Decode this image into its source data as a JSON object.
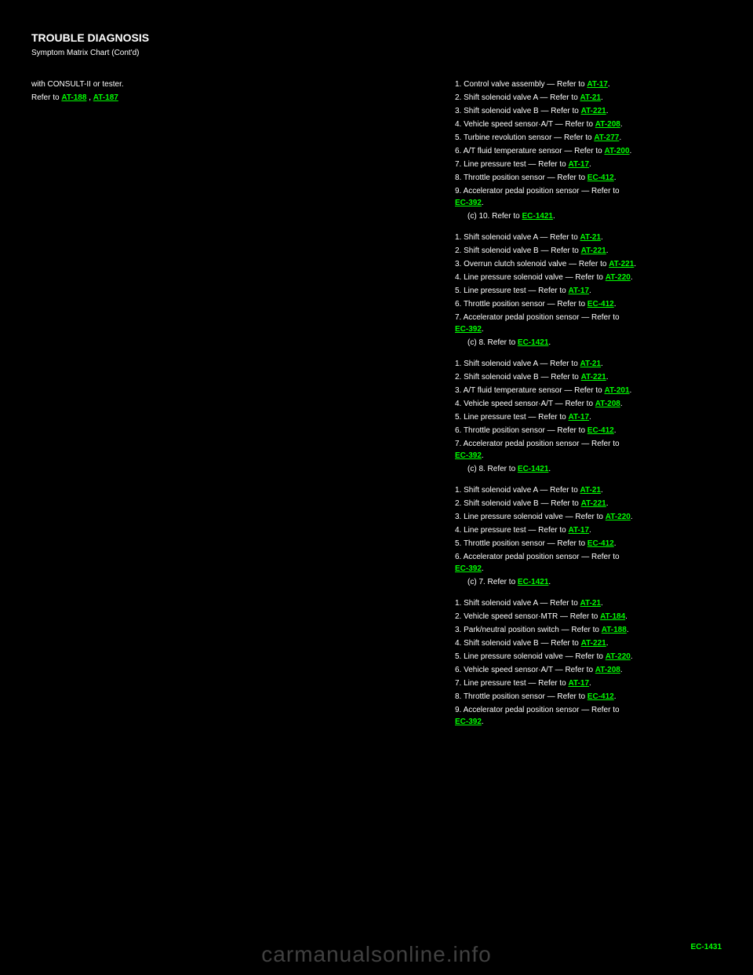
{
  "header": {
    "title": "TROUBLE DIAGNOSIS",
    "subtitle": "Symptom Matrix Chart (Cont'd)"
  },
  "left": {
    "intro": "with CONSULT-II or tester.",
    "line2_prefix": "Refer to ",
    "link1": "AT-188",
    "link_sep": ", ",
    "link2": "AT-187"
  },
  "right": {
    "groups": [
      {
        "title": "",
        "items": [
          {
            "text": "1. Control valve assembly — Refer to ",
            "link": "AT-17",
            "suffix": "."
          },
          {
            "text": "2. Shift solenoid valve A — Refer to ",
            "link": "AT-21",
            "suffix": "."
          },
          {
            "text": "3. Shift solenoid valve B — Refer to ",
            "link": "AT-221",
            "suffix": "."
          },
          {
            "text": "4. Vehicle speed sensor·A/T — Refer to ",
            "link": "AT-208",
            "suffix": "."
          },
          {
            "text": "5. Turbine revolution sensor — Refer to ",
            "link": "AT-277",
            "suffix": "."
          },
          {
            "text": "6. A/T fluid temperature sensor — Refer to ",
            "link": "AT-200",
            "suffix": "."
          },
          {
            "text": "7. Line pressure test — Refer to ",
            "link": "AT-17",
            "suffix": "."
          },
          {
            "text": "8. Throttle position sensor — Refer to ",
            "link": "EC-412",
            "suffix": "."
          },
          {
            "text": "9. Accelerator pedal position sensor — Refer to ",
            "link": "EC-392",
            "suffix": ".",
            "wrap": true
          },
          {
            "text": "(c) 10. Refer to ",
            "link": "EC-1421",
            "suffix": ".",
            "indent": 1
          }
        ]
      },
      {
        "title": "",
        "items": [
          {
            "text": "1. Shift solenoid valve A — Refer to ",
            "link": "AT-21",
            "suffix": "."
          },
          {
            "text": "2. Shift solenoid valve B — Refer to ",
            "link": "AT-221",
            "suffix": "."
          },
          {
            "text": "3. Overrun clutch solenoid valve — Refer to ",
            "link": "AT-221",
            "suffix": "."
          },
          {
            "text": "4. Line pressure solenoid valve — Refer to ",
            "link": "AT-220",
            "suffix": "."
          },
          {
            "text": "5. Line pressure test — Refer to ",
            "link": "AT-17",
            "suffix": "."
          },
          {
            "text": "6. Throttle position sensor — Refer to ",
            "link": "EC-412",
            "suffix": "."
          },
          {
            "text": "7. Accelerator pedal position sensor — Refer to ",
            "link": "EC-392",
            "suffix": ".",
            "wrap": true
          },
          {
            "text": "(c) 8. Refer to ",
            "link": "EC-1421",
            "suffix": ".",
            "indent": 1
          }
        ]
      },
      {
        "title": "",
        "items": [
          {
            "text": "1. Shift solenoid valve A — Refer to ",
            "link": "AT-21",
            "suffix": "."
          },
          {
            "text": "2. Shift solenoid valve B — Refer to ",
            "link": "AT-221",
            "suffix": "."
          },
          {
            "text": "3. A/T fluid temperature sensor — Refer to ",
            "link": "AT-201",
            "suffix": "."
          },
          {
            "text": "4. Vehicle speed sensor·A/T — Refer to ",
            "link": "AT-208",
            "suffix": "."
          },
          {
            "text": "5. Line pressure test — Refer to ",
            "link": "AT-17",
            "suffix": "."
          },
          {
            "text": "6. Throttle position sensor — Refer to ",
            "link": "EC-412",
            "suffix": "."
          },
          {
            "text": "7. Accelerator pedal position sensor — Refer to ",
            "link": "EC-392",
            "suffix": ".",
            "wrap": true
          },
          {
            "text": "(c) 8. Refer to ",
            "link": "EC-1421",
            "suffix": ".",
            "indent": 1
          }
        ]
      },
      {
        "title": "",
        "items": [
          {
            "text": "1. Shift solenoid valve A — Refer to ",
            "link": "AT-21",
            "suffix": "."
          },
          {
            "text": "2. Shift solenoid valve B — Refer to ",
            "link": "AT-221",
            "suffix": "."
          },
          {
            "text": "3. Line pressure solenoid valve — Refer to ",
            "link": "AT-220",
            "suffix": "."
          },
          {
            "text": "4. Line pressure test — Refer to ",
            "link": "AT-17",
            "suffix": "."
          },
          {
            "text": "5. Throttle position sensor — Refer to ",
            "link": "EC-412",
            "suffix": "."
          },
          {
            "text": "6. Accelerator pedal position sensor — Refer to ",
            "link": "EC-392",
            "suffix": ".",
            "wrap": true
          },
          {
            "text": "(c) 7. Refer to ",
            "link": "EC-1421",
            "suffix": ".",
            "indent": 1
          }
        ]
      },
      {
        "title": "",
        "items": [
          {
            "text": "1. Shift solenoid valve A — Refer to ",
            "link": "AT-21",
            "suffix": "."
          },
          {
            "text": "2. Vehicle speed sensor·MTR — Refer to ",
            "link": "AT-184",
            "suffix": "."
          },
          {
            "text": "3. Park/neutral position switch — Refer to ",
            "link": "AT-188",
            "suffix": "."
          },
          {
            "text": "4. Shift solenoid valve B — Refer to ",
            "link": "AT-221",
            "suffix": "."
          },
          {
            "text": "5. Line pressure solenoid valve — Refer to ",
            "link": "AT-220",
            "suffix": "."
          },
          {
            "text": "6. Vehicle speed sensor·A/T — Refer to ",
            "link": "AT-208",
            "suffix": "."
          },
          {
            "text": "7. Line pressure test — Refer to ",
            "link": "AT-17",
            "suffix": "."
          },
          {
            "text": "8. Throttle position sensor — Refer to ",
            "link": "EC-412",
            "suffix": "."
          },
          {
            "text": "9. Accelerator pedal position sensor — Refer to ",
            "link": "EC-392",
            "suffix": ".",
            "wrap": true
          }
        ]
      }
    ]
  },
  "footer": {
    "page": "EC-1431",
    "watermark": "carmanualsonline.info"
  },
  "colors": {
    "background": "#000000",
    "text": "#ffffff",
    "link": "#00ff00",
    "watermark": "rgba(255,255,255,0.25)"
  }
}
